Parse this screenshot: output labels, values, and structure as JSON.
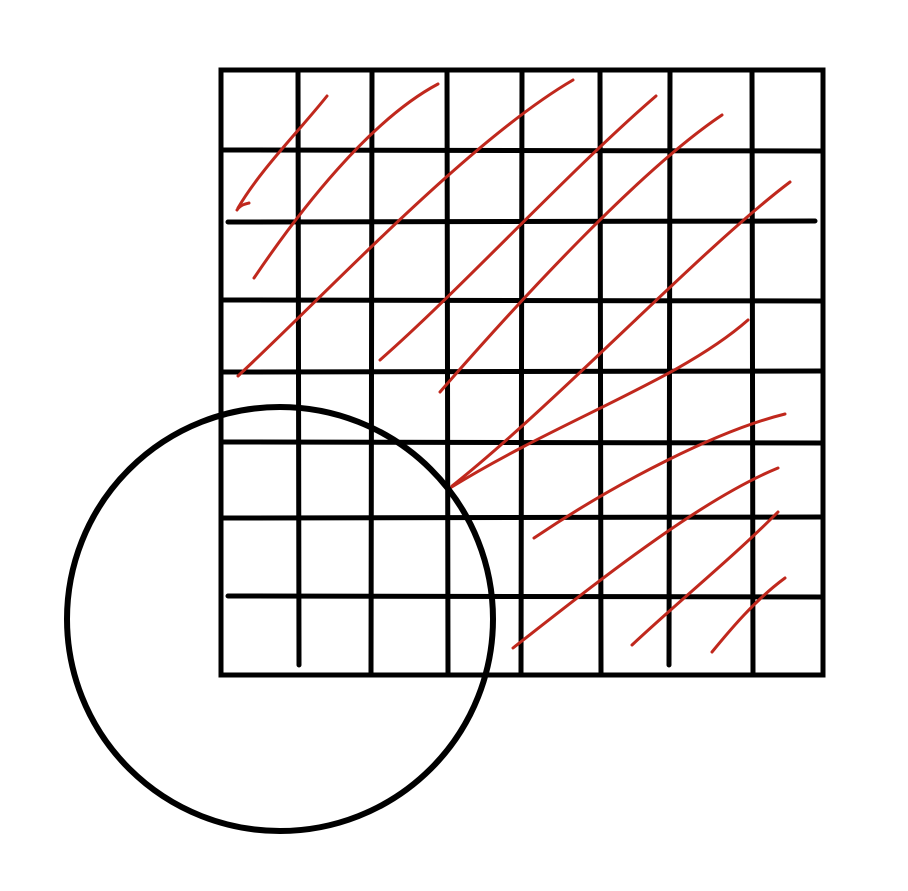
{
  "diagram": {
    "grid": {
      "columns": 8,
      "rows": 8,
      "line_color": "#000000"
    },
    "hatching": {
      "color": "#c0281d",
      "stroke_count": 12
    },
    "circle": {
      "color": "#000000"
    }
  }
}
